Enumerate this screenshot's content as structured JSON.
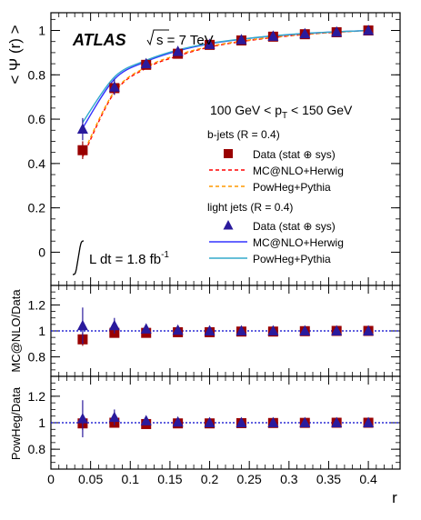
{
  "figure": {
    "experiment": "ATLAS",
    "energy": "s = 7 TeV",
    "pt_range_prefix": "100 GeV < p",
    "pt_sub": "T",
    "pt_range_suffix": " < 150 GeV",
    "lumi_text": "L dt = 1.8 fb",
    "lumi_exp": "-1",
    "bjets_header": "b-jets (R = 0.4)",
    "ljets_header": "light jets (R = 0.4)",
    "colors": {
      "b_data": "#990000",
      "b_mcnlo": "#ff0000",
      "b_powheg": "#ff9900",
      "l_data": "#2a1a9c",
      "l_mcnlo": "#3333ff",
      "l_powheg": "#33aacc",
      "ratio_line": "#0000cc"
    }
  },
  "chart_data": [
    {
      "type": "line",
      "panel": "main",
      "xlabel": "",
      "ylabel": "< Ψ (r) >",
      "xlim": [
        0,
        0.44
      ],
      "ylim": [
        -0.15,
        1.08
      ],
      "y_ticks": [
        0,
        0.2,
        0.4,
        0.6,
        0.8,
        1
      ],
      "y_tick_labels": [
        "0",
        "0.2",
        "0.4",
        "0.6",
        "0.8",
        "1"
      ],
      "x": [
        0.04,
        0.08,
        0.12,
        0.16,
        0.2,
        0.24,
        0.28,
        0.32,
        0.36,
        0.4
      ],
      "series": [
        {
          "name": "Data (stat ⊕ sys)",
          "group": "b",
          "style": "square",
          "values": [
            0.46,
            0.74,
            0.845,
            0.895,
            0.935,
            0.955,
            0.972,
            0.983,
            0.992,
            1.0
          ],
          "errors": [
            0.04,
            0.03,
            0.02,
            0.015,
            0.01,
            0.008,
            0.006,
            0.004,
            0.003,
            0.0
          ]
        },
        {
          "name": "MC@NLO+Herwig",
          "group": "b",
          "style": "dashed",
          "values": [
            0.43,
            0.72,
            0.83,
            0.885,
            0.925,
            0.95,
            0.968,
            0.982,
            0.992,
            1.0
          ]
        },
        {
          "name": "PowHeg+Pythia",
          "group": "b",
          "style": "dashed",
          "values": [
            0.44,
            0.725,
            0.835,
            0.89,
            0.928,
            0.952,
            0.97,
            0.983,
            0.992,
            1.0
          ]
        },
        {
          "name": "Data (stat ⊕ sys)",
          "group": "l",
          "style": "triangle",
          "values": [
            0.555,
            0.745,
            0.85,
            0.905,
            0.937,
            0.958,
            0.974,
            0.985,
            0.993,
            1.0
          ],
          "errors": [
            0.05,
            0.035,
            0.02,
            0.015,
            0.01,
            0.008,
            0.006,
            0.004,
            0.003,
            0.0
          ]
        },
        {
          "name": "MC@NLO+Herwig",
          "group": "l",
          "style": "solid",
          "values": [
            0.56,
            0.78,
            0.86,
            0.908,
            0.94,
            0.96,
            0.975,
            0.986,
            0.994,
            1.0
          ]
        },
        {
          "name": "PowHeg+Pythia",
          "group": "l",
          "style": "solid",
          "values": [
            0.585,
            0.79,
            0.865,
            0.912,
            0.942,
            0.961,
            0.976,
            0.987,
            0.994,
            1.0
          ]
        }
      ]
    },
    {
      "type": "scatter",
      "panel": "ratio1",
      "ylabel": "MC@NLO/Data",
      "ylim": [
        0.65,
        1.35
      ],
      "y_ticks": [
        0.8,
        1,
        1.2
      ],
      "y_tick_labels": [
        "0.8",
        "1",
        "1.2"
      ],
      "reference": 1,
      "x": [
        0.04,
        0.08,
        0.12,
        0.16,
        0.2,
        0.24,
        0.28,
        0.32,
        0.36,
        0.4
      ],
      "series": [
        {
          "name": "b-jets",
          "style": "square",
          "values": [
            0.935,
            0.985,
            0.985,
            0.99,
            0.99,
            0.995,
            0.995,
            0.998,
            1.0,
            1.0
          ],
          "errors": [
            0.05,
            0.03,
            0.02,
            0.015,
            0.01,
            0.008,
            0.006,
            0.004,
            0.003,
            0.0
          ]
        },
        {
          "name": "light jets",
          "style": "triangle",
          "values": [
            1.04,
            1.04,
            1.015,
            1.005,
            1.0,
            1.0,
            1.0,
            1.0,
            1.0,
            1.0
          ],
          "errors": [
            0.14,
            0.06,
            0.03,
            0.02,
            0.012,
            0.01,
            0.008,
            0.006,
            0.004,
            0.0
          ]
        }
      ]
    },
    {
      "type": "scatter",
      "panel": "ratio2",
      "xlabel": "r",
      "ylabel": "PowHeg/Data",
      "xlim": [
        0,
        0.44
      ],
      "ylim": [
        0.65,
        1.35
      ],
      "y_ticks": [
        0.8,
        1,
        1.2
      ],
      "y_tick_labels": [
        "0.8",
        "1",
        "1.2"
      ],
      "x_ticks": [
        0,
        0.05,
        0.1,
        0.15,
        0.2,
        0.25,
        0.3,
        0.35,
        0.4
      ],
      "x_tick_labels": [
        "0",
        "0.05",
        "0.1",
        "0.15",
        "0.2",
        "0.25",
        "0.3",
        "0.35",
        "0.4"
      ],
      "reference": 1,
      "x": [
        0.04,
        0.08,
        0.12,
        0.16,
        0.2,
        0.24,
        0.28,
        0.32,
        0.36,
        0.4
      ],
      "series": [
        {
          "name": "b-jets",
          "style": "square",
          "values": [
            0.995,
            1.0,
            0.99,
            0.995,
            0.995,
            0.997,
            0.998,
            0.999,
            1.0,
            1.0
          ],
          "errors": [
            0.05,
            0.03,
            0.02,
            0.015,
            0.01,
            0.008,
            0.006,
            0.004,
            0.003,
            0.0
          ]
        },
        {
          "name": "light jets",
          "style": "triangle",
          "values": [
            1.03,
            1.04,
            1.015,
            1.005,
            1.0,
            1.0,
            1.0,
            1.0,
            1.0,
            1.0
          ],
          "errors": [
            0.14,
            0.06,
            0.03,
            0.02,
            0.012,
            0.01,
            0.008,
            0.006,
            0.004,
            0.0
          ]
        }
      ]
    }
  ]
}
